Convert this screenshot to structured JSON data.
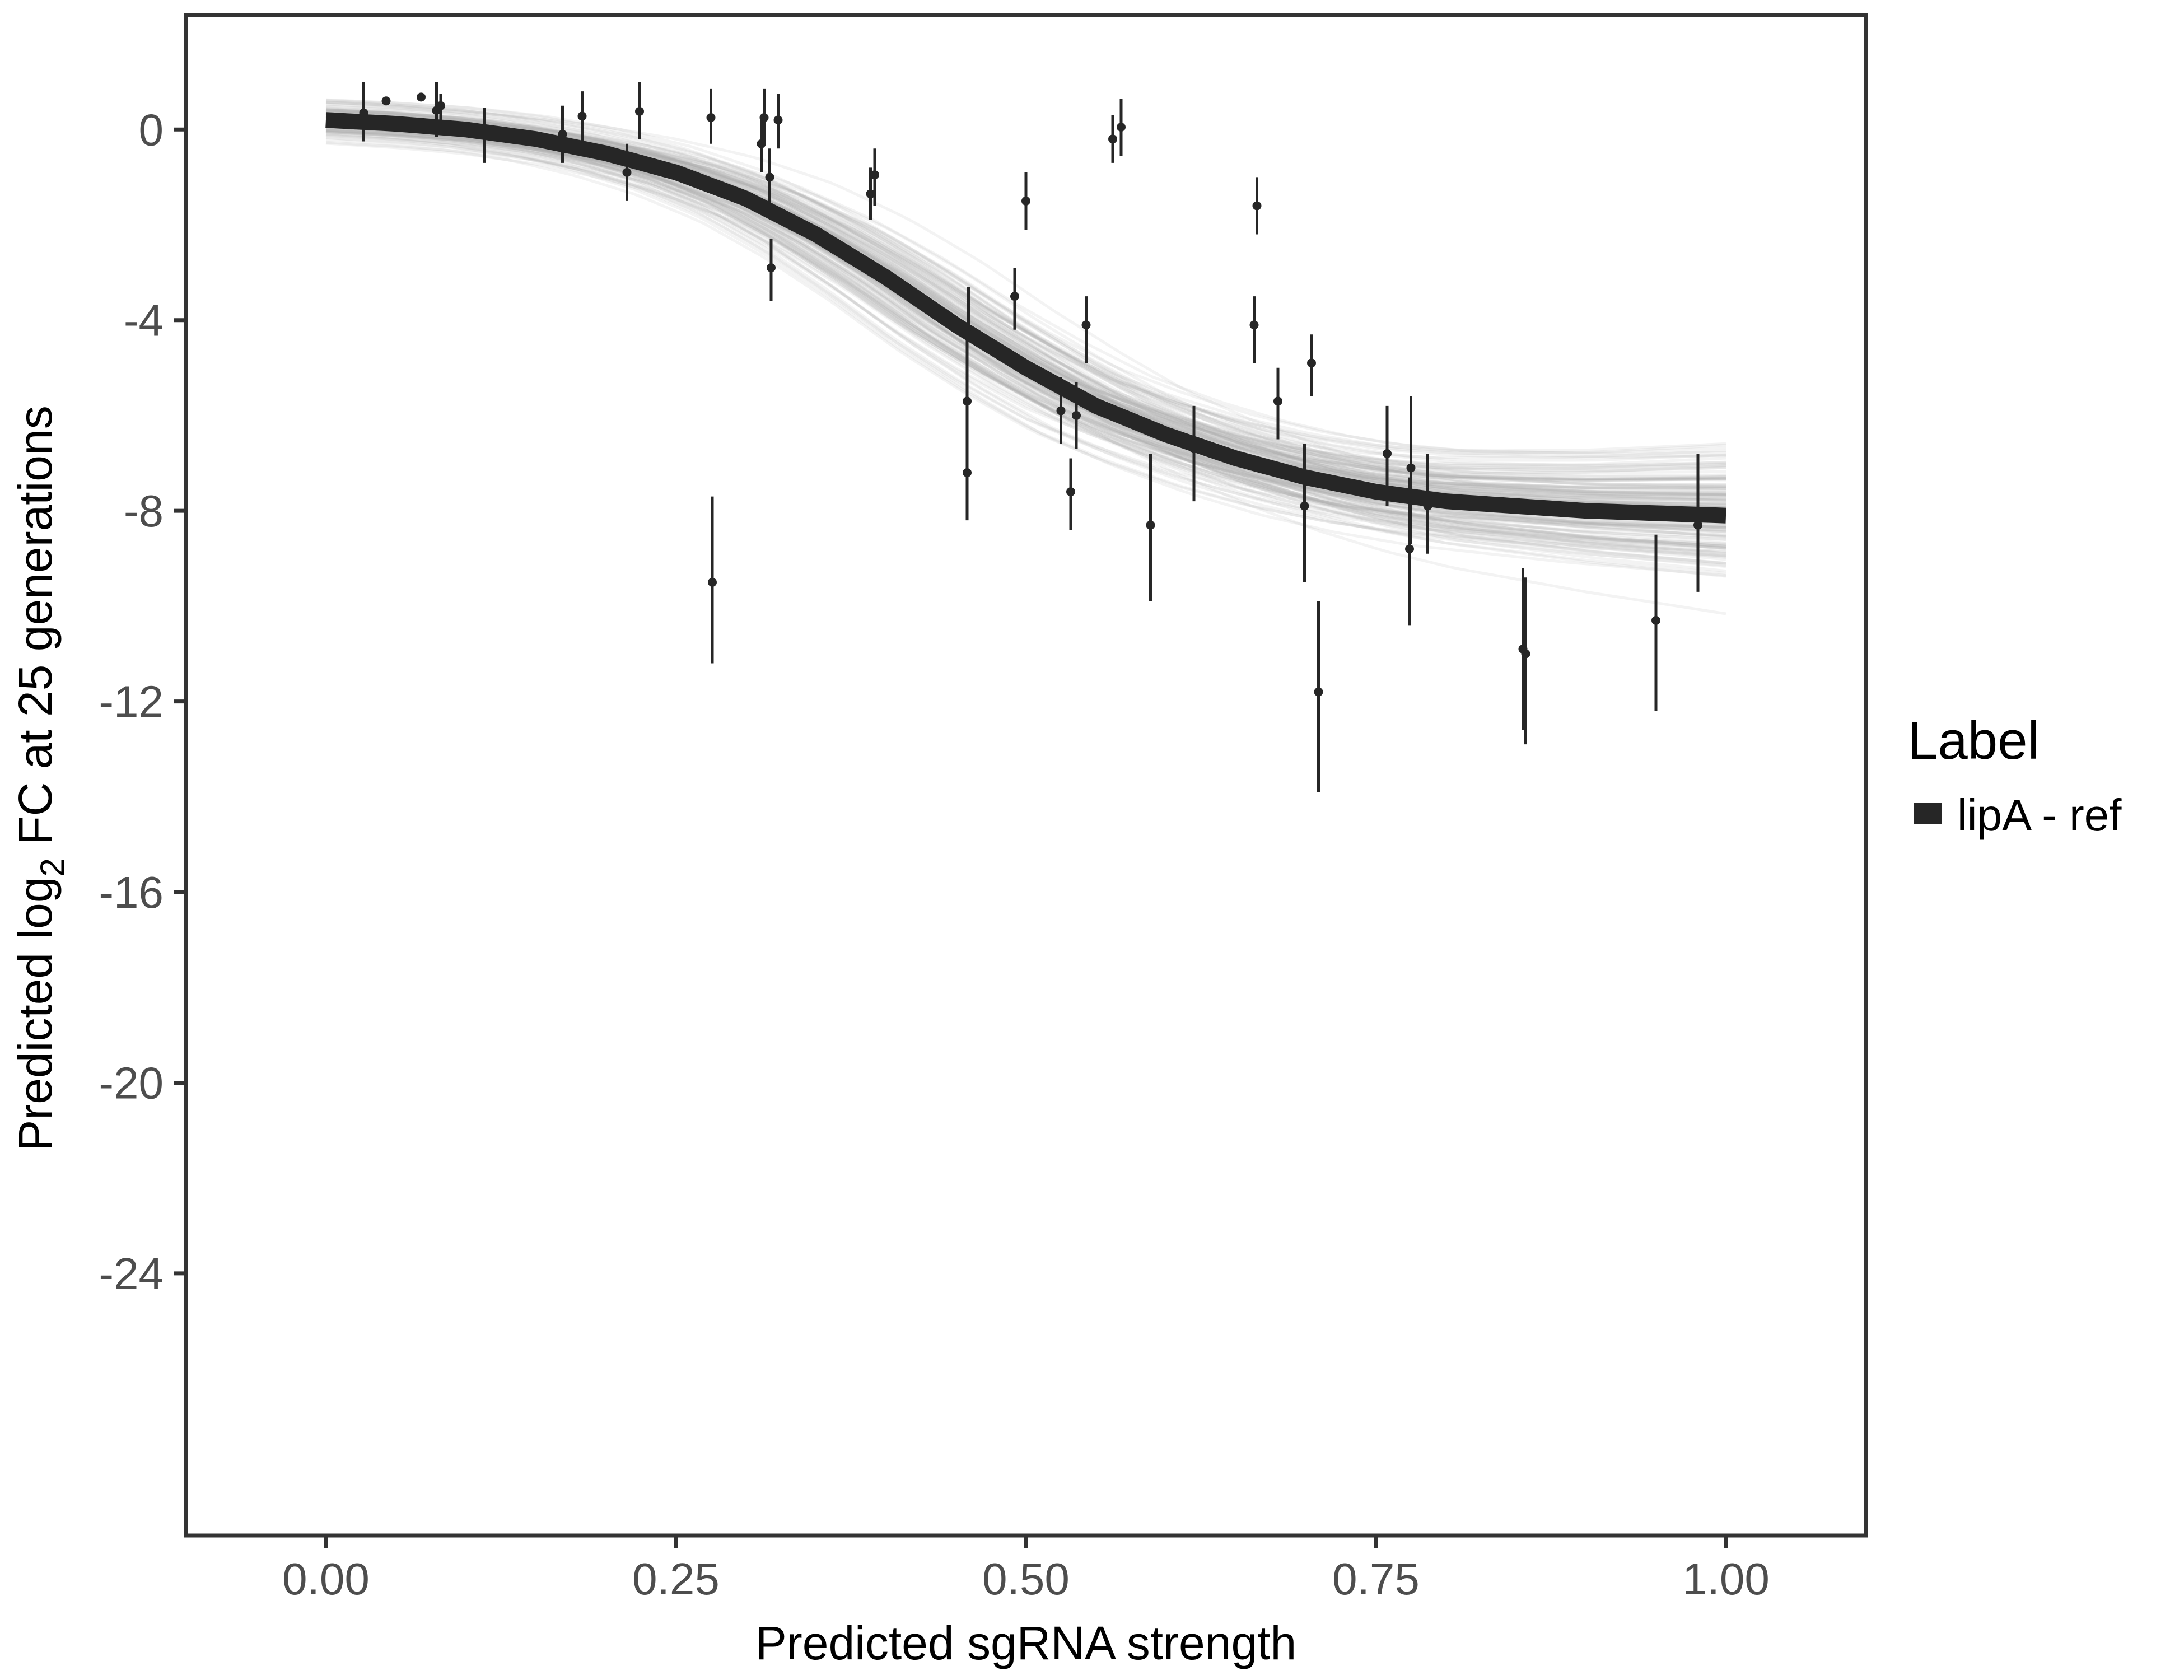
{
  "chart_data": {
    "type": "line",
    "title": "",
    "xlabel": "Predicted sgRNA strength",
    "ylabel": {
      "prefix": "Predicted  log",
      "subscript": "2",
      "suffix": " FC at 25 generations"
    },
    "xlim": [
      -0.1,
      1.1
    ],
    "ylim": [
      -29.5,
      2.4
    ],
    "x_ticks": [
      0.0,
      0.25,
      0.5,
      0.75,
      1.0
    ],
    "x_tick_labels": [
      "0.00",
      "0.25",
      "0.50",
      "0.75",
      "1.00"
    ],
    "y_ticks": [
      0,
      -4,
      -8,
      -12,
      -16,
      -20,
      -24
    ],
    "y_tick_labels": [
      "0",
      "-4",
      "-8",
      "-12",
      "-16",
      "-20",
      "-24"
    ],
    "grid": false,
    "legend": {
      "title": "Label",
      "placement": "right",
      "entries": [
        {
          "name": "lipA - ref",
          "color": "#262626"
        }
      ]
    },
    "fit_curve": {
      "name": "lipA - ref",
      "color": "#262626",
      "x": [
        0.0,
        0.05,
        0.1,
        0.15,
        0.2,
        0.25,
        0.3,
        0.35,
        0.4,
        0.45,
        0.5,
        0.55,
        0.6,
        0.65,
        0.7,
        0.75,
        0.8,
        0.85,
        0.9,
        0.95,
        1.0
      ],
      "y": [
        0.2,
        0.12,
        0.0,
        -0.2,
        -0.5,
        -0.9,
        -1.45,
        -2.2,
        -3.1,
        -4.1,
        -5.0,
        -5.8,
        -6.4,
        -6.9,
        -7.3,
        -7.6,
        -7.8,
        -7.9,
        -8.0,
        -8.05,
        -8.1
      ]
    },
    "uncertainty_band": {
      "color": "#ababab",
      "curve_count": 160
    },
    "points": [
      {
        "x": 0.027,
        "y": 0.35,
        "lo": -0.25,
        "hi": 1.0
      },
      {
        "x": 0.043,
        "y": 0.6,
        "lo": 0.6,
        "hi": 0.6
      },
      {
        "x": 0.068,
        "y": 0.68,
        "lo": 0.68,
        "hi": 0.68
      },
      {
        "x": 0.079,
        "y": 0.4,
        "lo": -0.15,
        "hi": 1.0
      },
      {
        "x": 0.082,
        "y": 0.5,
        "lo": 0.2,
        "hi": 0.75
      },
      {
        "x": 0.113,
        "y": -0.05,
        "lo": -0.7,
        "hi": 0.45
      },
      {
        "x": 0.169,
        "y": -0.1,
        "lo": -0.7,
        "hi": 0.5
      },
      {
        "x": 0.183,
        "y": 0.28,
        "lo": -0.3,
        "hi": 0.8
      },
      {
        "x": 0.215,
        "y": -0.9,
        "lo": -1.5,
        "hi": -0.3
      },
      {
        "x": 0.224,
        "y": 0.38,
        "lo": -0.2,
        "hi": 1.0
      },
      {
        "x": 0.275,
        "y": 0.25,
        "lo": -0.3,
        "hi": 0.85
      },
      {
        "x": 0.276,
        "y": -9.5,
        "lo": -11.2,
        "hi": -7.7
      },
      {
        "x": 0.311,
        "y": -0.3,
        "lo": -0.9,
        "hi": 0.3
      },
      {
        "x": 0.313,
        "y": 0.25,
        "lo": -0.3,
        "hi": 0.85
      },
      {
        "x": 0.317,
        "y": -1.0,
        "lo": -1.6,
        "hi": -0.4
      },
      {
        "x": 0.318,
        "y": -2.9,
        "lo": -3.6,
        "hi": -2.3
      },
      {
        "x": 0.323,
        "y": 0.2,
        "lo": -0.4,
        "hi": 0.75
      },
      {
        "x": 0.389,
        "y": -1.35,
        "lo": -1.9,
        "hi": -0.8
      },
      {
        "x": 0.392,
        "y": -0.95,
        "lo": -1.6,
        "hi": -0.4
      },
      {
        "x": 0.458,
        "y": -5.7,
        "lo": -7.0,
        "hi": -4.4
      },
      {
        "x": 0.458,
        "y": -7.2,
        "lo": -8.2,
        "hi": -6.1
      },
      {
        "x": 0.459,
        "y": -4.3,
        "lo": -4.3,
        "hi": -3.3
      },
      {
        "x": 0.492,
        "y": -3.5,
        "lo": -4.2,
        "hi": -2.9
      },
      {
        "x": 0.5,
        "y": -1.5,
        "lo": -2.1,
        "hi": -0.9
      },
      {
        "x": 0.525,
        "y": -5.9,
        "lo": -6.6,
        "hi": -5.2
      },
      {
        "x": 0.532,
        "y": -7.6,
        "lo": -8.4,
        "hi": -6.9
      },
      {
        "x": 0.536,
        "y": -6.0,
        "lo": -6.7,
        "hi": -5.3
      },
      {
        "x": 0.543,
        "y": -4.1,
        "lo": -4.9,
        "hi": -3.5
      },
      {
        "x": 0.562,
        "y": -0.2,
        "lo": -0.7,
        "hi": 0.3
      },
      {
        "x": 0.568,
        "y": 0.05,
        "lo": -0.55,
        "hi": 0.65
      },
      {
        "x": 0.589,
        "y": -8.3,
        "lo": -9.9,
        "hi": -6.8
      },
      {
        "x": 0.62,
        "y": -6.7,
        "lo": -7.8,
        "hi": -5.8
      },
      {
        "x": 0.663,
        "y": -4.1,
        "lo": -4.9,
        "hi": -3.5
      },
      {
        "x": 0.665,
        "y": -1.6,
        "lo": -2.2,
        "hi": -1.0
      },
      {
        "x": 0.68,
        "y": -5.7,
        "lo": -6.5,
        "hi": -5.0
      },
      {
        "x": 0.699,
        "y": -7.9,
        "lo": -9.5,
        "hi": -6.6
      },
      {
        "x": 0.704,
        "y": -4.9,
        "lo": -5.6,
        "hi": -4.3
      },
      {
        "x": 0.709,
        "y": -11.8,
        "lo": -13.9,
        "hi": -9.9
      },
      {
        "x": 0.758,
        "y": -6.8,
        "lo": -7.9,
        "hi": -5.8
      },
      {
        "x": 0.774,
        "y": -8.8,
        "lo": -10.4,
        "hi": -7.3
      },
      {
        "x": 0.775,
        "y": -7.1,
        "lo": -8.7,
        "hi": -5.6
      },
      {
        "x": 0.787,
        "y": -7.9,
        "lo": -8.9,
        "hi": -6.8
      },
      {
        "x": 0.855,
        "y": -10.9,
        "lo": -12.6,
        "hi": -9.2
      },
      {
        "x": 0.857,
        "y": -11.0,
        "lo": -12.9,
        "hi": -9.4
      },
      {
        "x": 0.95,
        "y": -10.3,
        "lo": -12.2,
        "hi": -8.5
      },
      {
        "x": 0.98,
        "y": -8.3,
        "lo": -9.7,
        "hi": -6.8
      }
    ]
  }
}
